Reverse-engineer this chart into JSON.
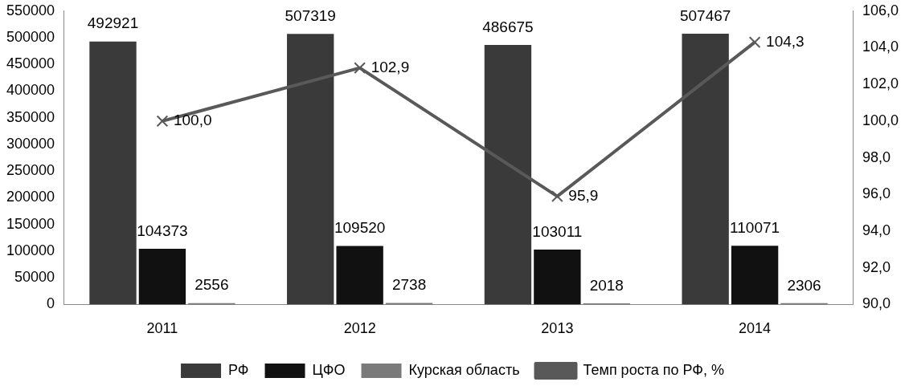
{
  "chart_data": {
    "type": "bar",
    "categories": [
      "2011",
      "2012",
      "2013",
      "2014"
    ],
    "series": [
      {
        "name": "РФ",
        "color": "#3a3a3a",
        "values": [
          492921,
          507319,
          486675,
          507467
        ],
        "value_labels": [
          "492921",
          "507319",
          "486675",
          "507467"
        ]
      },
      {
        "name": "ЦФО",
        "color": "#111111",
        "values": [
          104373,
          109520,
          103011,
          110071
        ],
        "value_labels": [
          "104373",
          "109520",
          "103011",
          "110071"
        ]
      },
      {
        "name": "Курская область",
        "color": "#7a7a7a",
        "values": [
          2556,
          2738,
          2018,
          2306
        ],
        "value_labels": [
          "2556",
          "2738",
          "2018",
          "2306"
        ]
      },
      {
        "name": "Темп роста по РФ, %",
        "type": "line",
        "axis": "y2",
        "color": "#595959",
        "values": [
          100.0,
          102.9,
          95.9,
          104.3
        ],
        "value_labels": [
          "100,0",
          "102,9",
          "95,9",
          "104,3"
        ]
      }
    ],
    "ylim": [
      0,
      550000
    ],
    "yticks": [
      0,
      50000,
      100000,
      150000,
      200000,
      250000,
      300000,
      350000,
      400000,
      450000,
      500000,
      550000
    ],
    "y2lim": [
      90,
      106
    ],
    "y2ticks": [
      {
        "value": 90,
        "label": "90,0"
      },
      {
        "value": 92,
        "label": "92,0"
      },
      {
        "value": 94,
        "label": "94,0"
      },
      {
        "value": 96,
        "label": "96,0"
      },
      {
        "value": 98,
        "label": "98,0"
      },
      {
        "value": 100,
        "label": "100,0"
      },
      {
        "value": 102,
        "label": "102,0"
      },
      {
        "value": 104,
        "label": "104,0"
      },
      {
        "value": 106,
        "label": "106,0"
      }
    ],
    "grid": false,
    "legend": "bottom",
    "marker": "cross",
    "line_style": "solid"
  }
}
